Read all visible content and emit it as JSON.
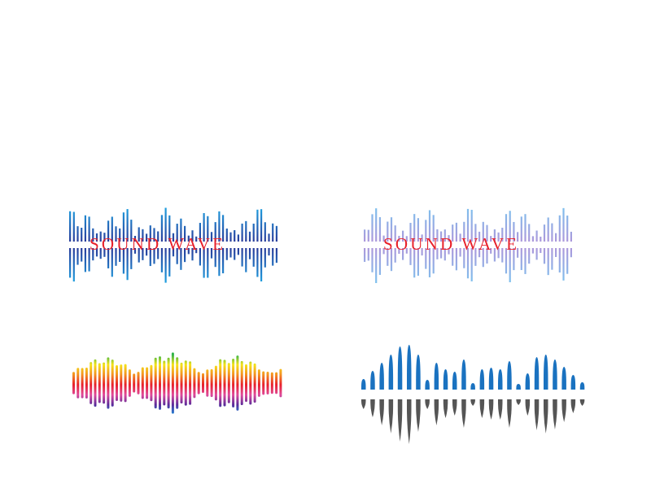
{
  "logos": [
    {
      "title": "SOUND WAVE",
      "style": "blue-bars",
      "colors": {
        "top": "#1ea0e0",
        "base": "#2a3b9a",
        "text": "#e8202a"
      }
    },
    {
      "title": "SOUND WAVE",
      "style": "light-violet-bars",
      "colors": {
        "top": "#46a6e6",
        "base": "#8a6ccc",
        "text": "#e8202a"
      }
    },
    {
      "style": "rainbow-bars",
      "colors": {
        "gradient": [
          "#2db34a",
          "#f5e31a",
          "#f39020",
          "#e8202a",
          "#e04a9a",
          "#5a2a9a",
          "#1a8ad8"
        ]
      }
    },
    {
      "style": "mirrored-blue-gray-spikes",
      "colors": {
        "top": "#1a72c0",
        "bottom": "#555555"
      }
    }
  ]
}
